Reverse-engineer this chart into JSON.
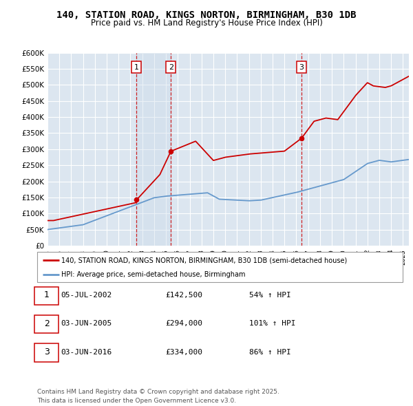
{
  "title": "140, STATION ROAD, KINGS NORTON, BIRMINGHAM, B30 1DB",
  "subtitle": "Price paid vs. HM Land Registry's House Price Index (HPI)",
  "sale_labels": [
    "1",
    "2",
    "3"
  ],
  "sale_dates_str": [
    "05-JUL-2002",
    "03-JUN-2005",
    "03-JUN-2016"
  ],
  "sale_prices_str": [
    "£142,500",
    "£294,000",
    "£334,000"
  ],
  "sale_pct_str": [
    "54% ↑ HPI",
    "101% ↑ HPI",
    "86% ↑ HPI"
  ],
  "sale_years": [
    2002.5,
    2005.42,
    2016.42
  ],
  "sale_prices": [
    142500,
    294000,
    334000
  ],
  "legend_line1": "140, STATION ROAD, KINGS NORTON, BIRMINGHAM, B30 1DB (semi-detached house)",
  "legend_line2": "HPI: Average price, semi-detached house, Birmingham",
  "footer": "Contains HM Land Registry data © Crown copyright and database right 2025.\nThis data is licensed under the Open Government Licence v3.0.",
  "ylim": [
    0,
    600000
  ],
  "xlim": [
    1995,
    2025.5
  ],
  "hpi_color": "#6699cc",
  "price_color": "#cc0000",
  "bg_color": "#dce6f0",
  "grid_color": "white",
  "vline_color": "#cc0000",
  "shade_color": "#c8d8e8"
}
